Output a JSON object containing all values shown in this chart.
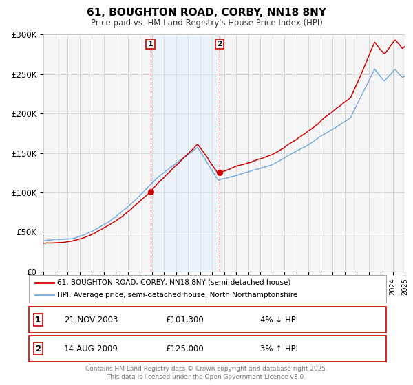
{
  "title": "61, BOUGHTON ROAD, CORBY, NN18 8NY",
  "subtitle": "Price paid vs. HM Land Registry's House Price Index (HPI)",
  "ylim": [
    0,
    300000
  ],
  "yticks": [
    0,
    50000,
    100000,
    150000,
    200000,
    250000,
    300000
  ],
  "ytick_labels": [
    "£0",
    "£50K",
    "£100K",
    "£150K",
    "£200K",
    "£250K",
    "£300K"
  ],
  "x_start_year": 1995,
  "x_end_year": 2025,
  "hpi_color": "#7aabdc",
  "price_color": "#cc0000",
  "sale1_x": 2003.9,
  "sale2_x": 2009.62,
  "sale1_price": 101300,
  "sale2_price": 125000,
  "sale1_date": "21-NOV-2003",
  "sale2_date": "14-AUG-2009",
  "sale1_hpi_text": "4% ↓ HPI",
  "sale2_hpi_text": "3% ↑ HPI",
  "sale1_price_text": "£101,300",
  "sale2_price_text": "£125,000",
  "shade_color": "#ddeeff",
  "background_color": "#f5f5f5",
  "grid_color": "#cccccc",
  "vline_color": "#dd4444",
  "legend1_text": "61, BOUGHTON ROAD, CORBY, NN18 8NY (semi-detached house)",
  "legend2_text": "HPI: Average price, semi-detached house, North Northamptonshire",
  "footer_text": "Contains HM Land Registry data © Crown copyright and database right 2025.\nThis data is licensed under the Open Government Licence v3.0."
}
